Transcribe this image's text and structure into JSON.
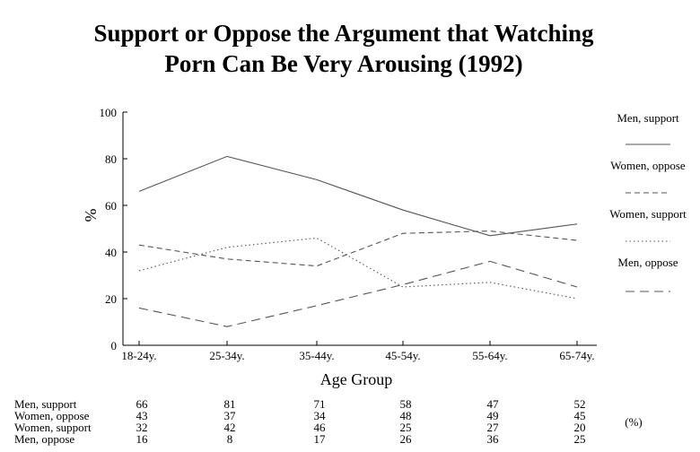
{
  "chart_data": {
    "type": "line",
    "title_lines": [
      "Support or Oppose the Argument that Watching",
      "Porn Can Be Very Arousing (1992)"
    ],
    "xlabel": "Age Group",
    "ylabel": "%",
    "categories": [
      "18-24y.",
      "25-34y.",
      "35-44y.",
      "45-54y.",
      "55-64y.",
      "65-74y."
    ],
    "ylim": [
      0,
      100
    ],
    "yticks": [
      0,
      20,
      40,
      60,
      80,
      100
    ],
    "legend_position": "right",
    "series": [
      {
        "name": "Men, support",
        "values": [
          66,
          81,
          71,
          58,
          47,
          52
        ],
        "style": "solid"
      },
      {
        "name": "Women, oppose",
        "values": [
          43,
          37,
          34,
          48,
          49,
          45
        ],
        "style": "dashed"
      },
      {
        "name": "Women, support",
        "values": [
          32,
          42,
          46,
          25,
          27,
          20
        ],
        "style": "dotted"
      },
      {
        "name": "Men, oppose",
        "values": [
          16,
          8,
          17,
          26,
          36,
          25
        ],
        "style": "longdash"
      }
    ],
    "table_unit": "(%)",
    "colors": {
      "line": "#555555",
      "axis": "#000000",
      "text": "#000000"
    }
  }
}
